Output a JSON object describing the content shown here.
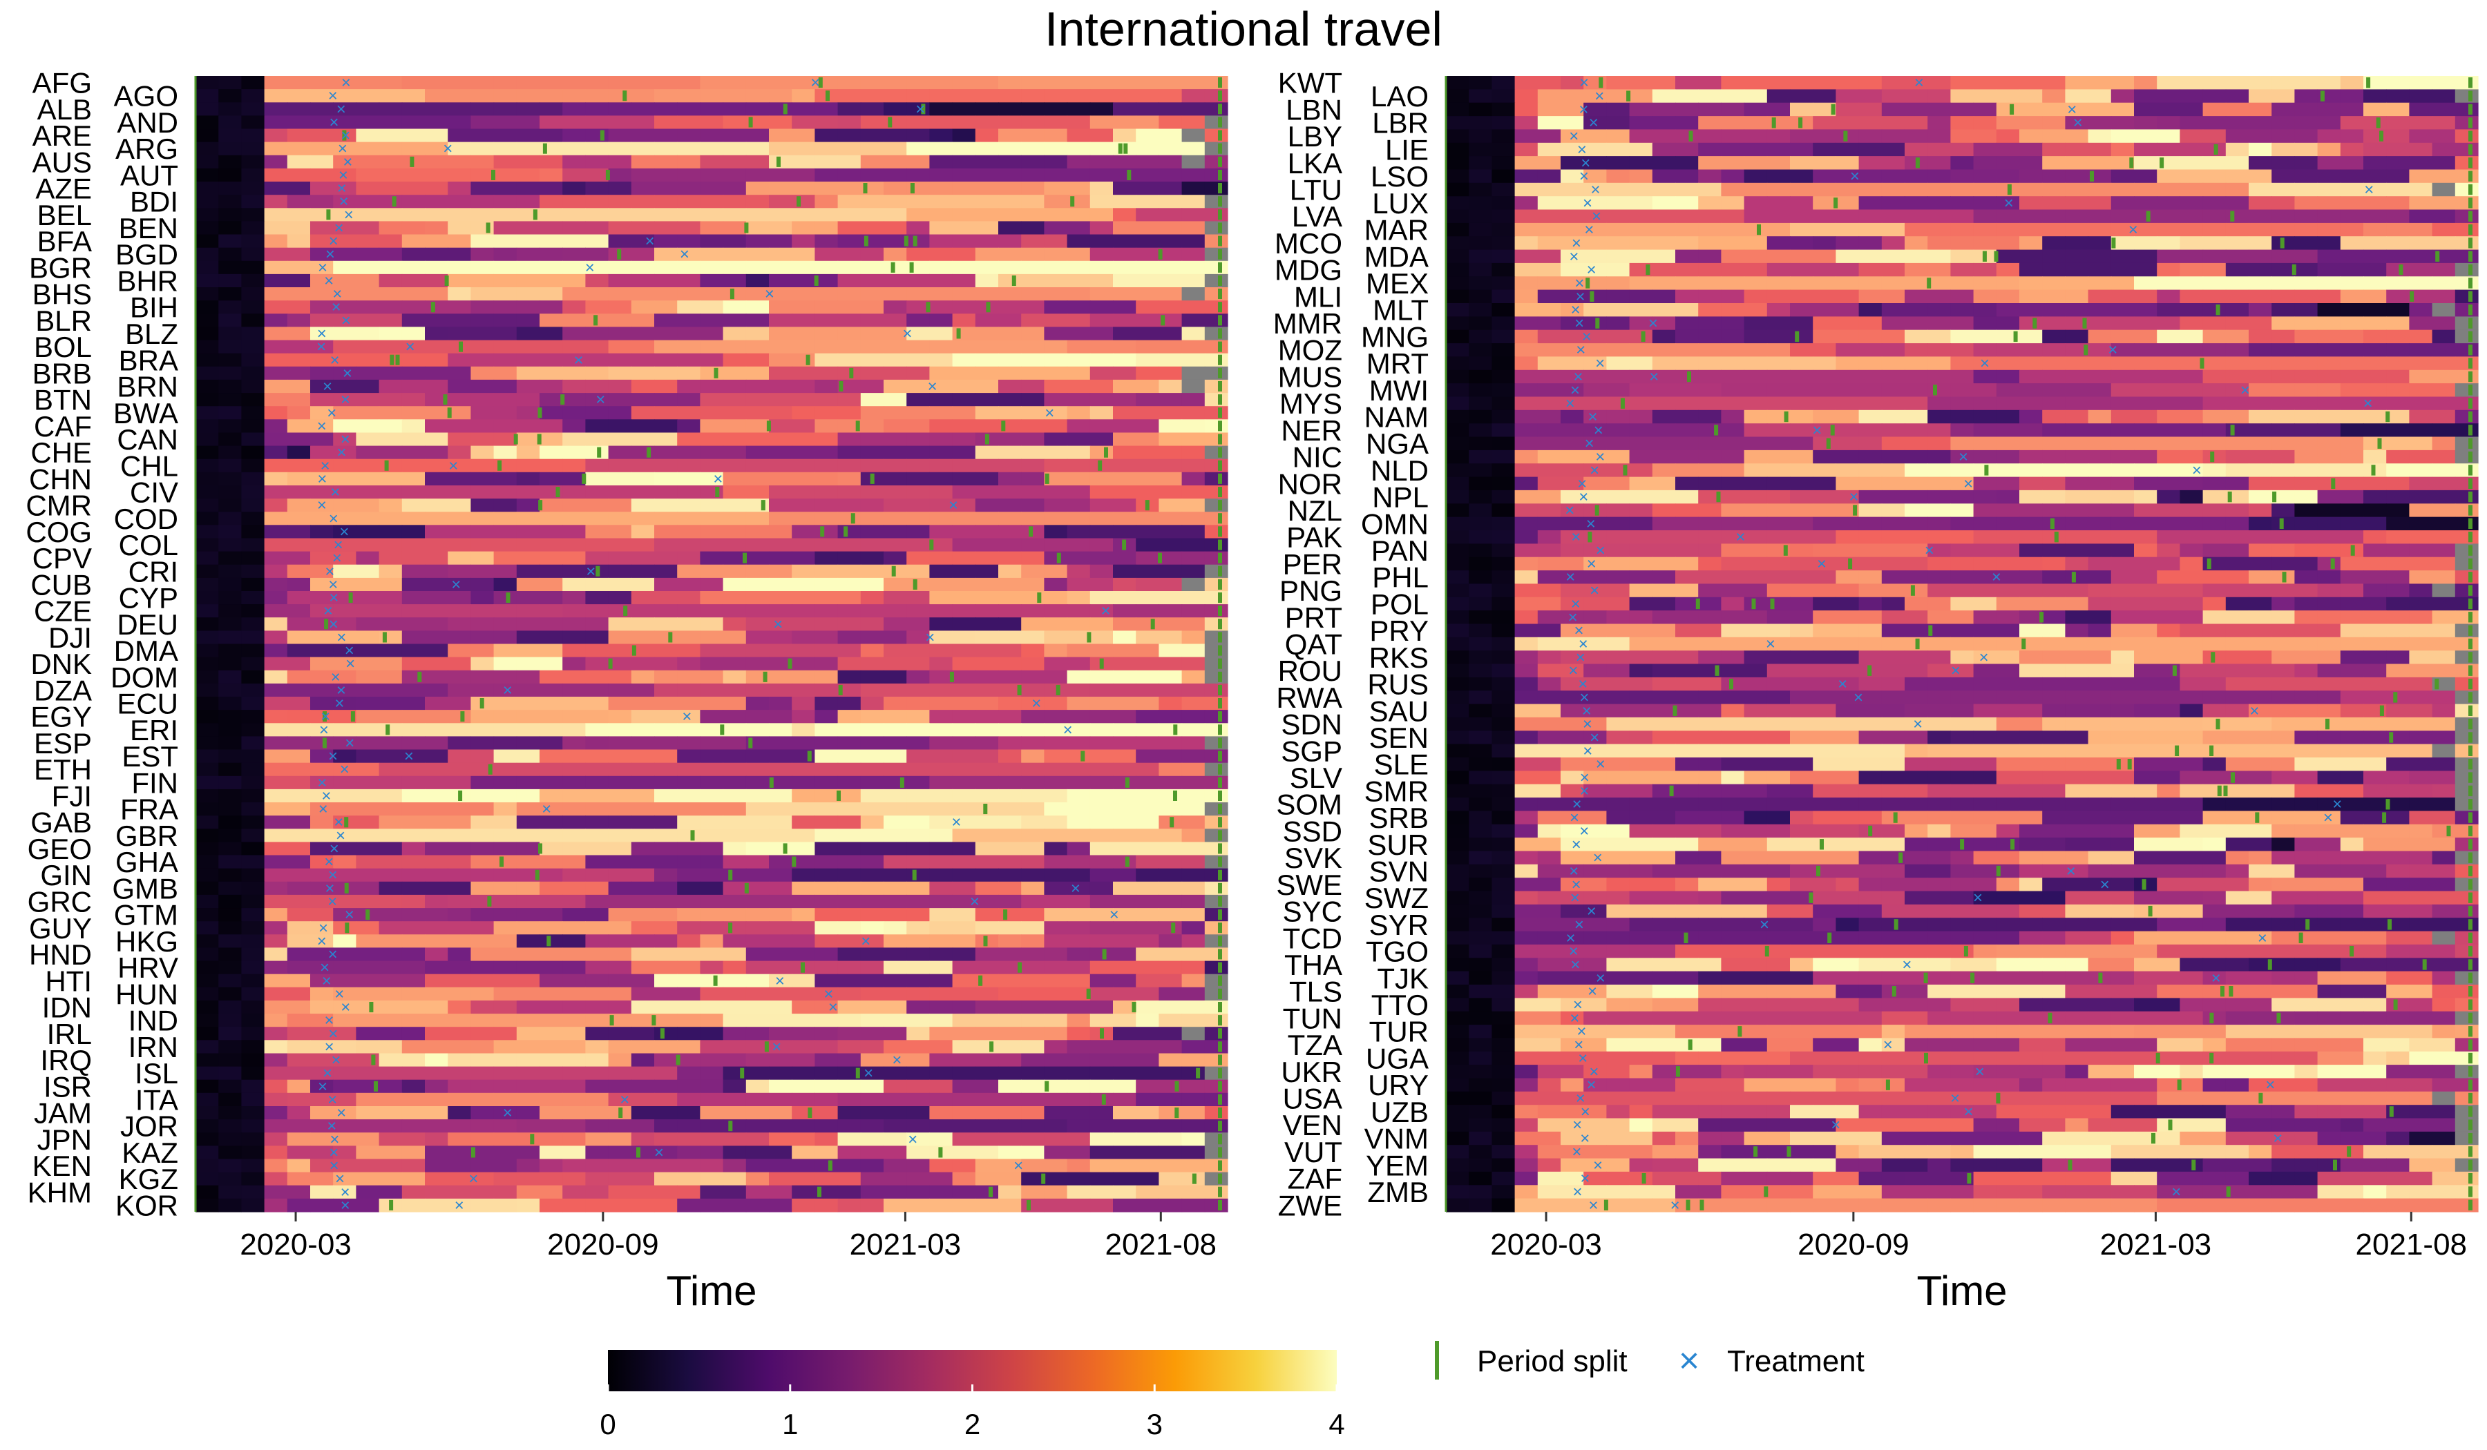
{
  "chart_data": {
    "type": "heatmap",
    "title": "International travel",
    "colorbar": {
      "min": 0,
      "max": 4,
      "ticks": [
        "0",
        "1",
        "2",
        "3",
        "4"
      ],
      "palette": "magma",
      "missing_color": "#7f7f7f"
    },
    "legend": [
      {
        "label": "Period split",
        "color": "#4e9a2a",
        "marker": "vertical-bar"
      },
      {
        "label": "Treatment",
        "color": "#2a86d1",
        "marker": "x"
      }
    ],
    "time_range": [
      "2020-01-01",
      "2021-09-10"
    ],
    "panels": [
      {
        "xlabel": "Time",
        "xticks": [
          {
            "label": "2020-03",
            "date": "2020-03-01"
          },
          {
            "label": "2020-09",
            "date": "2020-09-01"
          },
          {
            "label": "2021-03",
            "date": "2021-03-01"
          },
          {
            "label": "2021-08",
            "date": "2021-08-01"
          }
        ],
        "countries": [
          "AFG",
          "AGO",
          "ALB",
          "AND",
          "ARE",
          "ARG",
          "AUS",
          "AUT",
          "AZE",
          "BDI",
          "BEL",
          "BEN",
          "BFA",
          "BGD",
          "BGR",
          "BHR",
          "BHS",
          "BIH",
          "BLR",
          "BLZ",
          "BOL",
          "BRA",
          "BRB",
          "BRN",
          "BTN",
          "BWA",
          "CAF",
          "CAN",
          "CHE",
          "CHL",
          "CHN",
          "CIV",
          "CMR",
          "COD",
          "COG",
          "COL",
          "CPV",
          "CRI",
          "CUB",
          "CYP",
          "CZE",
          "DEU",
          "DJI",
          "DMA",
          "DNK",
          "DOM",
          "DZA",
          "ECU",
          "EGY",
          "ERI",
          "ESP",
          "EST",
          "ETH",
          "FIN",
          "FJI",
          "FRA",
          "GAB",
          "GBR",
          "GEO",
          "GHA",
          "GIN",
          "GMB",
          "GRC",
          "GTM",
          "GUY",
          "HKG",
          "HND",
          "HRV",
          "HTI",
          "HUN",
          "IDN",
          "IND",
          "IRL",
          "IRN",
          "IRQ",
          "ISL",
          "ISR",
          "ITA",
          "JAM",
          "JOR",
          "JPN",
          "KAZ",
          "KEN",
          "KGZ",
          "KHM",
          "KOR"
        ]
      },
      {
        "xlabel": "Time",
        "xticks": [
          {
            "label": "2020-03",
            "date": "2020-03-01"
          },
          {
            "label": "2020-09",
            "date": "2020-09-01"
          },
          {
            "label": "2021-03",
            "date": "2021-03-01"
          },
          {
            "label": "2021-08",
            "date": "2021-08-01"
          }
        ],
        "countries": [
          "KWT",
          "LAO",
          "LBN",
          "LBR",
          "LBY",
          "LIE",
          "LKA",
          "LSO",
          "LTU",
          "LUX",
          "LVA",
          "MAR",
          "MCO",
          "MDA",
          "MDG",
          "MEX",
          "MLI",
          "MLT",
          "MMR",
          "MNG",
          "MOZ",
          "MRT",
          "MUS",
          "MWI",
          "MYS",
          "NAM",
          "NER",
          "NGA",
          "NIC",
          "NLD",
          "NOR",
          "NPL",
          "NZL",
          "OMN",
          "PAK",
          "PAN",
          "PER",
          "PHL",
          "PNG",
          "POL",
          "PRT",
          "PRY",
          "QAT",
          "RKS",
          "ROU",
          "RUS",
          "RWA",
          "SAU",
          "SDN",
          "SEN",
          "SGP",
          "SLE",
          "SLV",
          "SMR",
          "SOM",
          "SRB",
          "SSD",
          "SUR",
          "SVK",
          "SVN",
          "SWE",
          "SWZ",
          "SYC",
          "SYR",
          "TCD",
          "TGO",
          "THA",
          "TJK",
          "TLS",
          "TTO",
          "TUN",
          "TUR",
          "TZA",
          "UGA",
          "UKR",
          "URY",
          "USA",
          "UZB",
          "VEN",
          "VNM",
          "VUT",
          "YEM",
          "ZAF",
          "ZMB",
          "ZWE"
        ]
      }
    ]
  }
}
